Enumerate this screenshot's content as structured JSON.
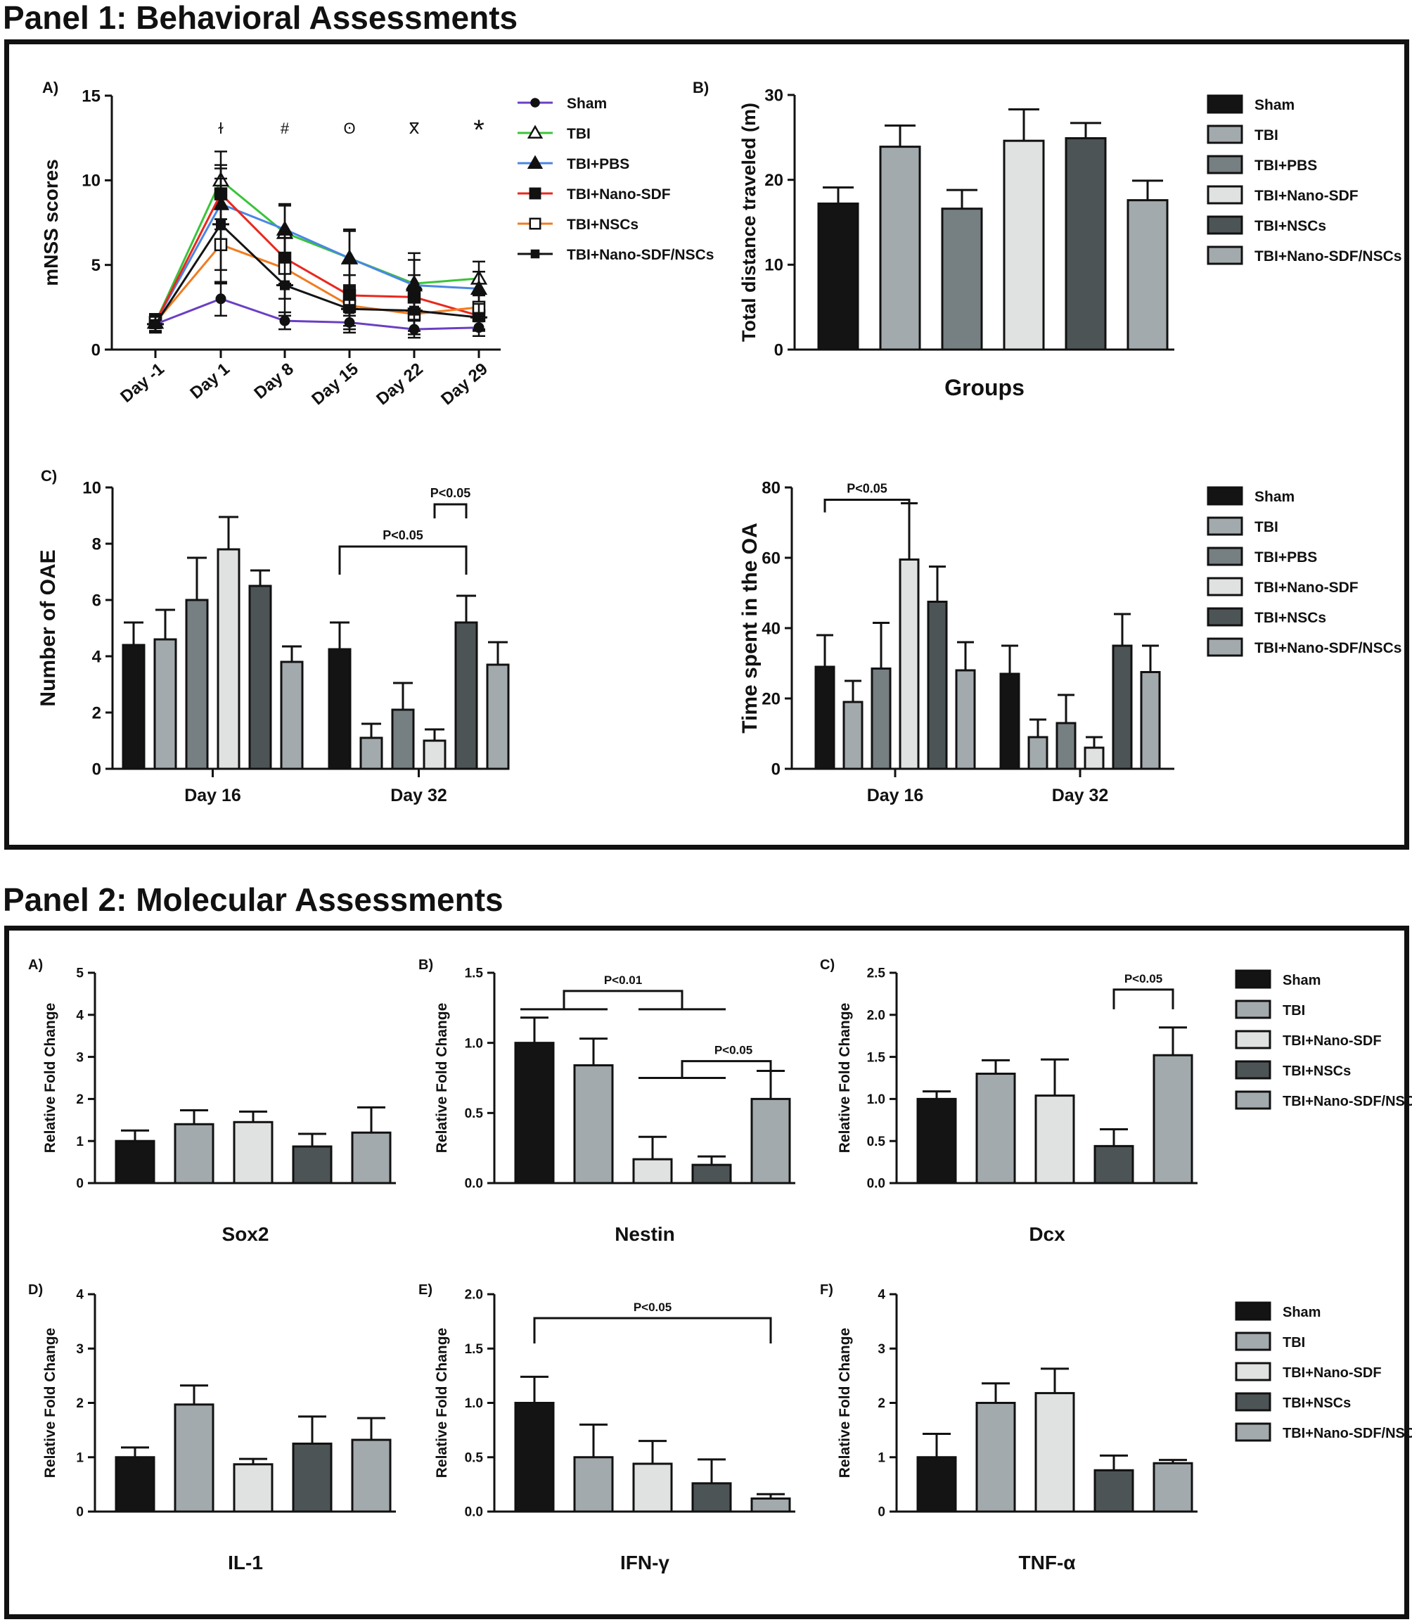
{
  "panel1": {
    "title": "Panel 1: Behavioral Assessments"
  },
  "panel2": {
    "title": "Panel 2: Molecular Assessments"
  },
  "colors": {
    "Sham": "#141414",
    "TBI": "#a3aaad",
    "TBI+PBS": "#767f82",
    "TBI+Nano-SDF": "#dfe2e1",
    "TBI+NSCs": "#4d5456",
    "TBI+Nano-SDF/NSCs": "#a3aaad",
    "line_Sham": "#6a3fc4",
    "line_TBI": "#3ac43a",
    "line_TBI+PBS": "#4b86e6",
    "line_TBI+Nano-SDF": "#e8281e",
    "line_TBI+NSCs": "#f07c20",
    "line_TBI+Nano-SDF/NSCs": "#141414"
  },
  "chart_data": [
    {
      "id": "p1A",
      "type": "line",
      "panel_label": "A)",
      "title": "",
      "xlabel": "",
      "ylabel": "mNSS scores",
      "ylim": [
        0,
        15
      ],
      "yticks": [
        0,
        5,
        10,
        15
      ],
      "categories": [
        "Day -1",
        "Day 1",
        "Day 8",
        "Day 15",
        "Day 22",
        "Day 29"
      ],
      "significance_marks": [
        "ɫ",
        "#",
        "ʘ",
        "ⴳ",
        "*"
      ],
      "series": [
        {
          "name": "Sham",
          "marker": "circle",
          "values": [
            1.5,
            3.0,
            1.7,
            1.6,
            1.2,
            1.3
          ],
          "errors": [
            0.5,
            1.0,
            0.5,
            0.6,
            0.5,
            0.5
          ]
        },
        {
          "name": "TBI",
          "marker": "triangle-open",
          "values": [
            1.6,
            10.0,
            6.9,
            5.4,
            3.9,
            4.2
          ],
          "errors": [
            0.5,
            1.7,
            1.6,
            1.7,
            1.8,
            1.0
          ]
        },
        {
          "name": "TBI+PBS",
          "marker": "triangle",
          "values": [
            1.6,
            8.6,
            7.1,
            5.4,
            3.8,
            3.6
          ],
          "errors": [
            0.5,
            1.5,
            1.5,
            1.6,
            1.5,
            1.0
          ]
        },
        {
          "name": "TBI+Nano-SDF",
          "marker": "square",
          "values": [
            1.6,
            9.2,
            5.4,
            3.2,
            3.1,
            2.0
          ],
          "errors": [
            0.5,
            1.5,
            1.5,
            1.2,
            1.3,
            0.8
          ]
        },
        {
          "name": "TBI+NSCs",
          "marker": "square-open",
          "values": [
            1.6,
            6.2,
            4.8,
            2.6,
            2.1,
            2.5
          ],
          "errors": [
            0.5,
            1.5,
            1.8,
            1.2,
            1.2,
            0.8
          ]
        },
        {
          "name": "TBI+Nano-SDF/NSCs",
          "marker": "square-bar",
          "values": [
            1.5,
            7.4,
            3.8,
            2.4,
            2.3,
            1.9
          ],
          "errors": [
            0.5,
            3.5,
            1.8,
            1.2,
            1.2,
            0.8
          ]
        }
      ]
    },
    {
      "id": "p1B",
      "type": "bar",
      "panel_label": "B)",
      "title": "",
      "xlabel": "Groups",
      "ylabel": "Total distance traveled (m)",
      "ylim": [
        0,
        30
      ],
      "yticks": [
        0,
        10,
        20,
        30
      ],
      "series": [
        {
          "name": "Sham",
          "values": [
            17.2
          ],
          "errors": [
            1.9
          ]
        },
        {
          "name": "TBI",
          "values": [
            23.9
          ],
          "errors": [
            2.5
          ]
        },
        {
          "name": "TBI+PBS",
          "values": [
            16.6
          ],
          "errors": [
            2.2
          ]
        },
        {
          "name": "TBI+Nano-SDF",
          "values": [
            24.6
          ],
          "errors": [
            3.7
          ]
        },
        {
          "name": "TBI+NSCs",
          "values": [
            24.9
          ],
          "errors": [
            1.8
          ]
        },
        {
          "name": "TBI+Nano-SDF/NSCs",
          "values": [
            17.6
          ],
          "errors": [
            2.3
          ]
        }
      ]
    },
    {
      "id": "p1C",
      "type": "bar",
      "panel_label": "C)",
      "title": "",
      "xlabel": "",
      "ylabel": "Number of OAE",
      "ylim": [
        0,
        10
      ],
      "yticks": [
        0,
        2,
        4,
        6,
        8,
        10
      ],
      "categories": [
        "Day 16",
        "Day 32"
      ],
      "series": [
        {
          "name": "Sham",
          "values": [
            4.4,
            4.25
          ],
          "errors": [
            0.8,
            0.95
          ]
        },
        {
          "name": "TBI",
          "values": [
            4.6,
            1.1
          ],
          "errors": [
            1.05,
            0.5
          ]
        },
        {
          "name": "TBI+PBS",
          "values": [
            6.0,
            2.1
          ],
          "errors": [
            1.5,
            0.95
          ]
        },
        {
          "name": "TBI+Nano-SDF",
          "values": [
            7.8,
            1.0
          ],
          "errors": [
            1.15,
            0.4
          ]
        },
        {
          "name": "TBI+NSCs",
          "values": [
            6.5,
            5.2
          ],
          "errors": [
            0.55,
            0.95
          ]
        },
        {
          "name": "TBI+Nano-SDF/NSCs",
          "values": [
            3.8,
            3.7
          ],
          "errors": [
            0.55,
            0.8
          ]
        }
      ],
      "annotations": [
        {
          "text": "P<0.05",
          "from": [
            1,
            0
          ],
          "to": [
            1,
            4
          ],
          "level": 7.9
        },
        {
          "text": "P<0.05",
          "from": [
            1,
            3
          ],
          "to": [
            1,
            4
          ],
          "level": 9.4
        }
      ]
    },
    {
      "id": "p1D",
      "type": "bar",
      "panel_label": "",
      "title": "",
      "xlabel": "",
      "ylabel": "Time spent in the OA",
      "ylim": [
        0,
        80
      ],
      "yticks": [
        0,
        20,
        40,
        60,
        80
      ],
      "categories": [
        "Day 16",
        "Day 32"
      ],
      "series": [
        {
          "name": "Sham",
          "values": [
            29,
            27
          ],
          "errors": [
            9,
            8
          ]
        },
        {
          "name": "TBI",
          "values": [
            19,
            9
          ],
          "errors": [
            6,
            5
          ]
        },
        {
          "name": "TBI+PBS",
          "values": [
            28.5,
            13
          ],
          "errors": [
            13,
            8
          ]
        },
        {
          "name": "TBI+Nano-SDF",
          "values": [
            59.5,
            6
          ],
          "errors": [
            16,
            3
          ]
        },
        {
          "name": "TBI+NSCs",
          "values": [
            47.5,
            35
          ],
          "errors": [
            10,
            9
          ]
        },
        {
          "name": "TBI+Nano-SDF/NSCs",
          "values": [
            28,
            27.5
          ],
          "errors": [
            8,
            7.5
          ]
        }
      ],
      "annotations": [
        {
          "text": "P<0.05",
          "from": [
            0,
            0
          ],
          "to": [
            0,
            3
          ],
          "level": 76.5
        }
      ]
    },
    {
      "id": "p2A",
      "type": "bar",
      "panel_label": "A)",
      "title": "",
      "xlabel": "Sox2",
      "ylabel": "Relative Fold Change",
      "ylim": [
        0,
        5
      ],
      "yticks": [
        0,
        1,
        2,
        3,
        4,
        5
      ],
      "series": [
        {
          "name": "Sham",
          "values": [
            1.0
          ],
          "errors": [
            0.25
          ]
        },
        {
          "name": "TBI",
          "values": [
            1.4
          ],
          "errors": [
            0.33
          ]
        },
        {
          "name": "TBI+Nano-SDF",
          "values": [
            1.45
          ],
          "errors": [
            0.25
          ]
        },
        {
          "name": "TBI+NSCs",
          "values": [
            0.87
          ],
          "errors": [
            0.3
          ]
        },
        {
          "name": "TBI+Nano-SDF/NSCs",
          "values": [
            1.2
          ],
          "errors": [
            0.6
          ]
        }
      ]
    },
    {
      "id": "p2B",
      "type": "bar",
      "panel_label": "B)",
      "title": "",
      "xlabel": "Nestin",
      "ylabel": "Relative Fold Change",
      "ylim": [
        0,
        1.5
      ],
      "yticks": [
        0.0,
        0.5,
        1.0,
        1.5
      ],
      "series": [
        {
          "name": "Sham",
          "values": [
            1.0
          ],
          "errors": [
            0.18
          ]
        },
        {
          "name": "TBI",
          "values": [
            0.84
          ],
          "errors": [
            0.19
          ]
        },
        {
          "name": "TBI+Nano-SDF",
          "values": [
            0.17
          ],
          "errors": [
            0.16
          ]
        },
        {
          "name": "TBI+NSCs",
          "values": [
            0.13
          ],
          "errors": [
            0.06
          ]
        },
        {
          "name": "TBI+Nano-SDF/NSCs",
          "values": [
            0.6
          ],
          "errors": [
            0.2
          ]
        }
      ],
      "annotations": [
        {
          "text": "P<0.01",
          "kind": "brace",
          "from": [
            0,
            1
          ],
          "to": [
            2,
            3
          ],
          "level": 1.37
        },
        {
          "text": "P<0.05",
          "kind": "brace-bracket",
          "from": [
            2,
            3
          ],
          "to": [
            4,
            4
          ],
          "level": 0.87
        }
      ]
    },
    {
      "id": "p2C",
      "type": "bar",
      "panel_label": "C)",
      "title": "",
      "xlabel": "Dcx",
      "ylabel": "Relative Fold Change",
      "ylim": [
        0,
        2.5
      ],
      "yticks": [
        0.0,
        0.5,
        1.0,
        1.5,
        2.0,
        2.5
      ],
      "series": [
        {
          "name": "Sham",
          "values": [
            1.0
          ],
          "errors": [
            0.09
          ]
        },
        {
          "name": "TBI",
          "values": [
            1.3
          ],
          "errors": [
            0.16
          ]
        },
        {
          "name": "TBI+Nano-SDF",
          "values": [
            1.04
          ],
          "errors": [
            0.43
          ]
        },
        {
          "name": "TBI+NSCs",
          "values": [
            0.44
          ],
          "errors": [
            0.2
          ]
        },
        {
          "name": "TBI+Nano-SDF/NSCs",
          "values": [
            1.52
          ],
          "errors": [
            0.33
          ]
        }
      ],
      "annotations": [
        {
          "text": "P<0.05",
          "from": [
            0,
            3
          ],
          "to": [
            0,
            4
          ],
          "level": 2.3
        }
      ]
    },
    {
      "id": "p2D",
      "type": "bar",
      "panel_label": "D)",
      "title": "",
      "xlabel": "IL-1",
      "ylabel": "Relative Fold Change",
      "ylim": [
        0,
        4
      ],
      "yticks": [
        0,
        1,
        2,
        3,
        4
      ],
      "series": [
        {
          "name": "Sham",
          "values": [
            1.0
          ],
          "errors": [
            0.18
          ]
        },
        {
          "name": "TBI",
          "values": [
            1.97
          ],
          "errors": [
            0.35
          ]
        },
        {
          "name": "TBI+Nano-SDF",
          "values": [
            0.87
          ],
          "errors": [
            0.1
          ]
        },
        {
          "name": "TBI+NSCs",
          "values": [
            1.25
          ],
          "errors": [
            0.5
          ]
        },
        {
          "name": "TBI+Nano-SDF/NSCs",
          "values": [
            1.32
          ],
          "errors": [
            0.4
          ]
        }
      ]
    },
    {
      "id": "p2E",
      "type": "bar",
      "panel_label": "E)",
      "title": "",
      "xlabel": "IFN-γ",
      "ylabel": "Relative Fold Change",
      "ylim": [
        0,
        2.0
      ],
      "yticks": [
        0.0,
        0.5,
        1.0,
        1.5,
        2.0
      ],
      "series": [
        {
          "name": "Sham",
          "values": [
            1.0
          ],
          "errors": [
            0.24
          ]
        },
        {
          "name": "TBI",
          "values": [
            0.5
          ],
          "errors": [
            0.3
          ]
        },
        {
          "name": "TBI+Nano-SDF",
          "values": [
            0.44
          ],
          "errors": [
            0.21
          ]
        },
        {
          "name": "TBI+NSCs",
          "values": [
            0.26
          ],
          "errors": [
            0.22
          ]
        },
        {
          "name": "TBI+Nano-SDF/NSCs",
          "values": [
            0.12
          ],
          "errors": [
            0.04
          ]
        }
      ],
      "annotations": [
        {
          "text": "P<0.05",
          "from": [
            0,
            0
          ],
          "to": [
            0,
            4
          ],
          "level": 1.78
        }
      ]
    },
    {
      "id": "p2F",
      "type": "bar",
      "panel_label": "F)",
      "title": "",
      "xlabel": "TNF-α",
      "ylabel": "Relative Fold Change",
      "ylim": [
        0,
        4
      ],
      "yticks": [
        0,
        1,
        2,
        3,
        4
      ],
      "series": [
        {
          "name": "Sham",
          "values": [
            1.0
          ],
          "errors": [
            0.43
          ]
        },
        {
          "name": "TBI",
          "values": [
            2.0
          ],
          "errors": [
            0.36
          ]
        },
        {
          "name": "TBI+Nano-SDF",
          "values": [
            2.18
          ],
          "errors": [
            0.45
          ]
        },
        {
          "name": "TBI+NSCs",
          "values": [
            0.76
          ],
          "errors": [
            0.27
          ]
        },
        {
          "name": "TBI+Nano-SDF/NSCs",
          "values": [
            0.89
          ],
          "errors": [
            0.06
          ]
        }
      ]
    }
  ]
}
